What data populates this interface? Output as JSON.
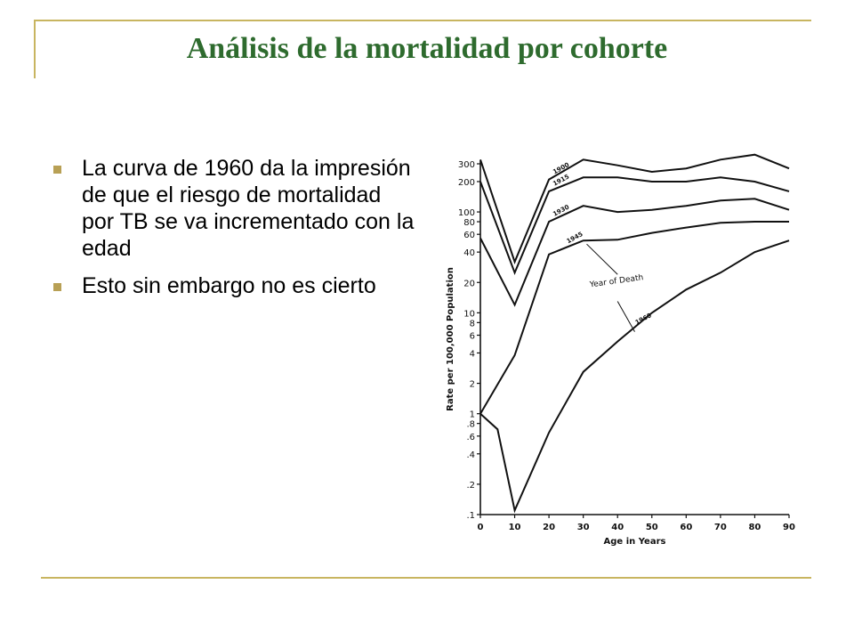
{
  "slide": {
    "title": "Análisis de la mortalidad por cohorte",
    "bullets": [
      "La curva de 1960 da la impresión de que el riesgo de mortalidad por TB se va incrementado con la edad",
      "Esto sin embargo no es cierto"
    ],
    "accent_color": "#c8b560",
    "title_color": "#2e6b2e"
  },
  "chart_data": {
    "type": "line",
    "xlabel": "Age in Years",
    "ylabel": "Rate per 100,000 Population",
    "scale_y": "log",
    "xlim": [
      0,
      90
    ],
    "ylim": [
      0.1,
      300
    ],
    "x_ticks": [
      "0",
      "10",
      "20",
      "30",
      "40",
      "50",
      "60",
      "70",
      "80",
      "90"
    ],
    "y_ticks": [
      {
        "value": 0.1,
        "label": ".1"
      },
      {
        "value": 0.2,
        "label": ".2"
      },
      {
        "value": 0.4,
        "label": ".4"
      },
      {
        "value": 0.6,
        "label": ".6"
      },
      {
        "value": 0.8,
        "label": ".8"
      },
      {
        "value": 1,
        "label": "1"
      },
      {
        "value": 2,
        "label": "2"
      },
      {
        "value": 4,
        "label": "4"
      },
      {
        "value": 6,
        "label": "6"
      },
      {
        "value": 8,
        "label": "8"
      },
      {
        "value": 10,
        "label": "10"
      },
      {
        "value": 20,
        "label": "20"
      },
      {
        "value": 40,
        "label": "40"
      },
      {
        "value": 60,
        "label": "60"
      },
      {
        "value": 80,
        "label": "80"
      },
      {
        "value": 100,
        "label": "100"
      },
      {
        "value": 200,
        "label": "200"
      },
      {
        "value": 300,
        "label": "300"
      }
    ],
    "annotation": "Year of Death",
    "series": [
      {
        "name": "1900",
        "x": [
          0,
          10,
          20,
          30,
          40,
          50,
          60,
          70,
          80,
          90
        ],
        "y": [
          330,
          32,
          210,
          330,
          290,
          250,
          270,
          330,
          370,
          270
        ]
      },
      {
        "name": "1915",
        "x": [
          0,
          10,
          20,
          30,
          40,
          50,
          60,
          70,
          80,
          90
        ],
        "y": [
          200,
          25,
          160,
          220,
          220,
          200,
          200,
          220,
          200,
          160
        ]
      },
      {
        "name": "1930",
        "x": [
          0,
          10,
          20,
          30,
          40,
          50,
          60,
          70,
          80,
          90
        ],
        "y": [
          55,
          12,
          80,
          115,
          100,
          105,
          115,
          130,
          135,
          105
        ]
      },
      {
        "name": "1945",
        "x": [
          0,
          10,
          20,
          30,
          40,
          50,
          60,
          70,
          80,
          90
        ],
        "y": [
          1.0,
          3.8,
          38,
          52,
          53,
          62,
          70,
          78,
          80,
          80
        ]
      },
      {
        "name": "1960",
        "x": [
          0,
          5,
          10,
          20,
          30,
          40,
          50,
          60,
          70,
          80,
          90
        ],
        "y": [
          1.0,
          0.7,
          0.11,
          0.65,
          2.6,
          5.2,
          10,
          17,
          25,
          40,
          52
        ]
      }
    ]
  }
}
